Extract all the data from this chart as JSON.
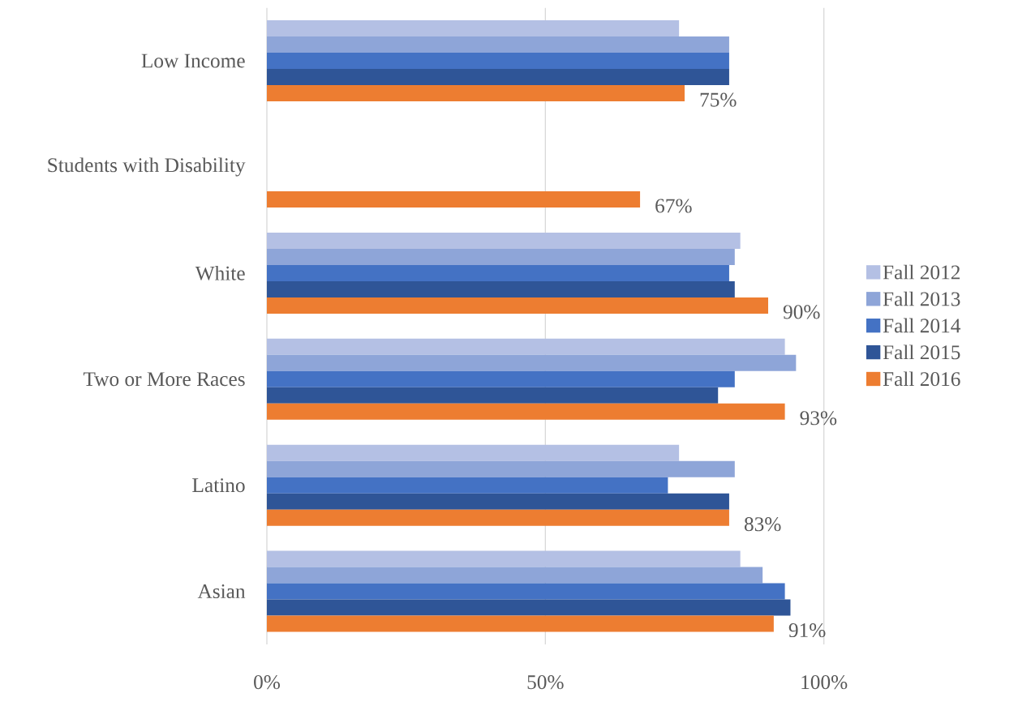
{
  "chart_data": {
    "type": "bar",
    "orientation": "horizontal",
    "categories": [
      "Low Income",
      "Students with Disability",
      "White",
      "Two or More Races",
      "Latino",
      "Asian"
    ],
    "series": [
      {
        "name": "Fall 2012",
        "color": "#b4c0e4",
        "values": [
          74,
          null,
          85,
          93,
          74,
          85
        ]
      },
      {
        "name": "Fall 2013",
        "color": "#8ea5d8",
        "values": [
          83,
          null,
          84,
          95,
          84,
          89
        ]
      },
      {
        "name": "Fall 2014",
        "color": "#4472c4",
        "values": [
          83,
          null,
          83,
          84,
          72,
          93
        ]
      },
      {
        "name": "Fall 2015",
        "color": "#2f5597",
        "values": [
          83,
          null,
          84,
          81,
          83,
          94
        ]
      },
      {
        "name": "Fall 2016",
        "color": "#ed7d31",
        "values": [
          75,
          67,
          90,
          93,
          83,
          91
        ],
        "value_labels": [
          "75%",
          "67%",
          "90%",
          "93%",
          "83%",
          "91%"
        ]
      }
    ],
    "xlim": [
      0,
      100
    ],
    "xticks": [
      {
        "value": 0,
        "label": "0%"
      },
      {
        "value": 50,
        "label": "50%"
      },
      {
        "value": 100,
        "label": "100%"
      }
    ],
    "grid": "x",
    "legend": "right"
  }
}
